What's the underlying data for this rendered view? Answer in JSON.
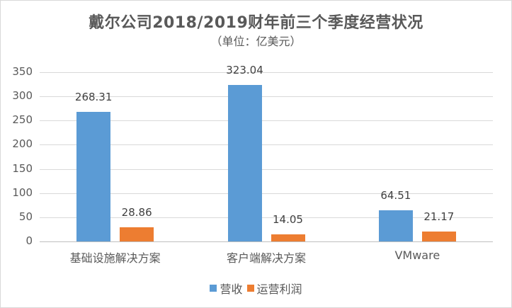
{
  "chart_data": {
    "type": "bar",
    "title": "戴尔公司2018/2019财年前三个季度经营状况",
    "subtitle": "（单位：亿美元）",
    "categories": [
      "基础设施解决方案",
      "客户端解决方案",
      "VMware"
    ],
    "series": [
      {
        "name": "营收",
        "color": "#5b9bd5",
        "values": [
          268.31,
          323.04,
          64.51
        ]
      },
      {
        "name": "运营利润",
        "color": "#ed7d31",
        "values": [
          28.86,
          14.05,
          21.17
        ]
      }
    ],
    "xlabel": "",
    "ylabel": "",
    "ylim": [
      0,
      350
    ],
    "yticks": [
      0,
      50,
      100,
      150,
      200,
      250,
      300,
      350
    ],
    "grid": true,
    "legend_position": "bottom"
  },
  "labels": {
    "y": [
      "350",
      "300",
      "250",
      "200",
      "150",
      "100",
      "50",
      "0"
    ],
    "data": {
      "rev": [
        "268.31",
        "323.04",
        "64.51"
      ],
      "op": [
        "28.86",
        "14.05",
        "21.17"
      ]
    }
  }
}
